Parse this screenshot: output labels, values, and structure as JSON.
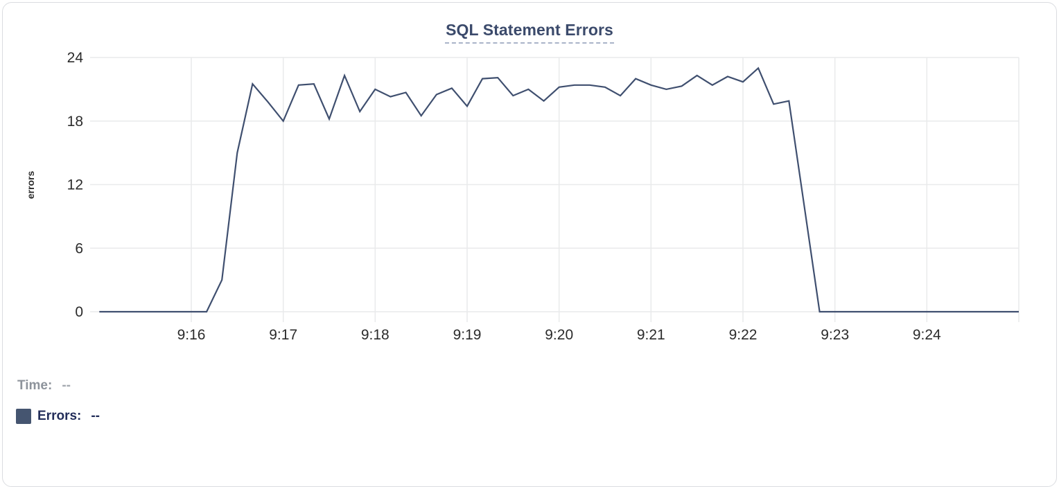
{
  "chart": {
    "title": "SQL Statement Errors"
  },
  "chart_data": {
    "type": "line",
    "title": "SQL Statement Errors",
    "xlabel": "",
    "ylabel": "errors",
    "ylim": [
      0,
      24
    ],
    "yticks": [
      0,
      6,
      12,
      18,
      24
    ],
    "grid": true,
    "legend_position": "bottom-left",
    "x_start": "9:15:00",
    "x_end": "9:25:00",
    "x_interval_seconds": 10,
    "x_gridline_times": [
      "9:16",
      "9:17",
      "9:18",
      "9:19",
      "9:20",
      "9:21",
      "9:22",
      "9:23",
      "9:24",
      "9:25"
    ],
    "x_tick_labels": [
      "9:16",
      "9:17",
      "9:18",
      "9:19",
      "9:20",
      "9:21",
      "9:22",
      "9:23",
      "9:24"
    ],
    "series": [
      {
        "name": "Errors",
        "color": "#3F4F6F",
        "values": [
          0,
          0,
          0,
          0,
          0,
          0,
          0,
          0,
          3,
          15,
          21.5,
          19.8,
          18,
          21.4,
          21.5,
          18.2,
          22.3,
          18.9,
          21,
          20.3,
          20.7,
          18.5,
          20.5,
          21.1,
          19.4,
          22,
          22.1,
          20.4,
          21,
          19.9,
          21.2,
          21.4,
          21.4,
          21.2,
          20.4,
          22,
          21.4,
          21,
          21.3,
          22.3,
          21.4,
          22.2,
          21.7,
          23,
          19.6,
          19.9,
          10,
          0,
          0,
          0,
          0,
          0,
          0,
          0,
          0,
          0,
          0,
          0,
          0,
          0,
          0
        ]
      }
    ]
  },
  "legend": {
    "time_label": "Time:",
    "time_value": "--",
    "errors_label": "Errors:",
    "errors_value": "--",
    "swatch_color": "#455570"
  }
}
